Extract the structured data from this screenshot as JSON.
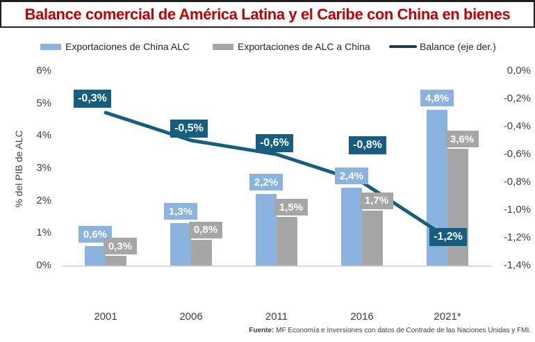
{
  "title": "Balance comercial de América Latina y el Caribe con China en bienes",
  "title_color": "#C00000",
  "legend": [
    {
      "label": "Exportaciones de China ALC",
      "type": "swatch",
      "color": "#8AB4DF"
    },
    {
      "label": "Exportaciones de ALC a China",
      "type": "swatch",
      "color": "#A6A6A6"
    },
    {
      "label": "Balance (eje der.)",
      "type": "line",
      "color": "#1F3864"
    }
  ],
  "source": {
    "prefix": "Fuente:",
    "text": " MF Economía e Inversiones con datos de Contrade de las Naciones Unidas y FMI."
  },
  "chart_data": {
    "type": "bar",
    "subtype": "grouped-bars-with-secondary-axis-line",
    "categories": [
      "2001",
      "2006",
      "2011",
      "2016",
      "2021*"
    ],
    "series": [
      {
        "name": "Exportaciones de China ALC",
        "type": "bar",
        "axis": "left",
        "values": [
          0.6,
          1.3,
          2.2,
          2.4,
          4.8
        ],
        "labels": [
          "0,6%",
          "1,3%",
          "2,2%",
          "2,4%",
          "4,8%"
        ],
        "color": "#8AB4DF"
      },
      {
        "name": "Exportaciones de ALC a China",
        "type": "bar",
        "axis": "left",
        "values": [
          0.3,
          0.8,
          1.5,
          1.7,
          3.6
        ],
        "labels": [
          "0,3%",
          "0,8%",
          "1,5%",
          "1,7%",
          "3,6%"
        ],
        "color": "#A6A6A6"
      },
      {
        "name": "Balance (eje der.)",
        "type": "line",
        "axis": "right",
        "values": [
          -0.3,
          -0.5,
          -0.6,
          -0.8,
          -1.2
        ],
        "labels": [
          "-0,3%",
          "-0,5%",
          "-0,6%",
          "-0,8%",
          "-1,2%"
        ],
        "color": "#155E7F"
      }
    ],
    "left_axis": {
      "label": "% del PIB de ALC",
      "min": 0,
      "max": 6,
      "ticks": [
        "6%",
        "5%",
        "4%",
        "3%",
        "2%",
        "1%",
        "0%"
      ]
    },
    "right_axis": {
      "min": -1.4,
      "max": 0,
      "ticks": [
        "0,0%",
        "-0,2%",
        "-0,4%",
        "-0,6%",
        "-0,8%",
        "-1,0%",
        "-1,2%",
        "-1,4%"
      ]
    },
    "grid": false,
    "legend_position": "top",
    "baseline_color": "#D9D9D9"
  }
}
